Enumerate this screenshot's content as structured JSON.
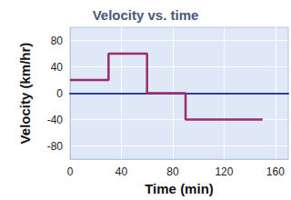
{
  "chart_data": {
    "type": "line",
    "title": "Velocity vs. time",
    "x_label": "Time (min)",
    "y_label": "Velocity (km/hr)",
    "x": [
      0,
      30,
      30,
      60,
      60,
      90,
      90,
      150
    ],
    "series": [
      {
        "name": "Velocity",
        "color": "#9c2a6e",
        "values": [
          20,
          20,
          60,
          60,
          0,
          0,
          -40,
          -40
        ]
      }
    ],
    "xlim": [
      0,
      170
    ],
    "xticks": [
      0,
      40,
      80,
      120,
      160
    ],
    "ylim": [
      -100,
      100
    ],
    "yticks": [
      -80,
      -40,
      0,
      40,
      80
    ],
    "grid": true
  }
}
